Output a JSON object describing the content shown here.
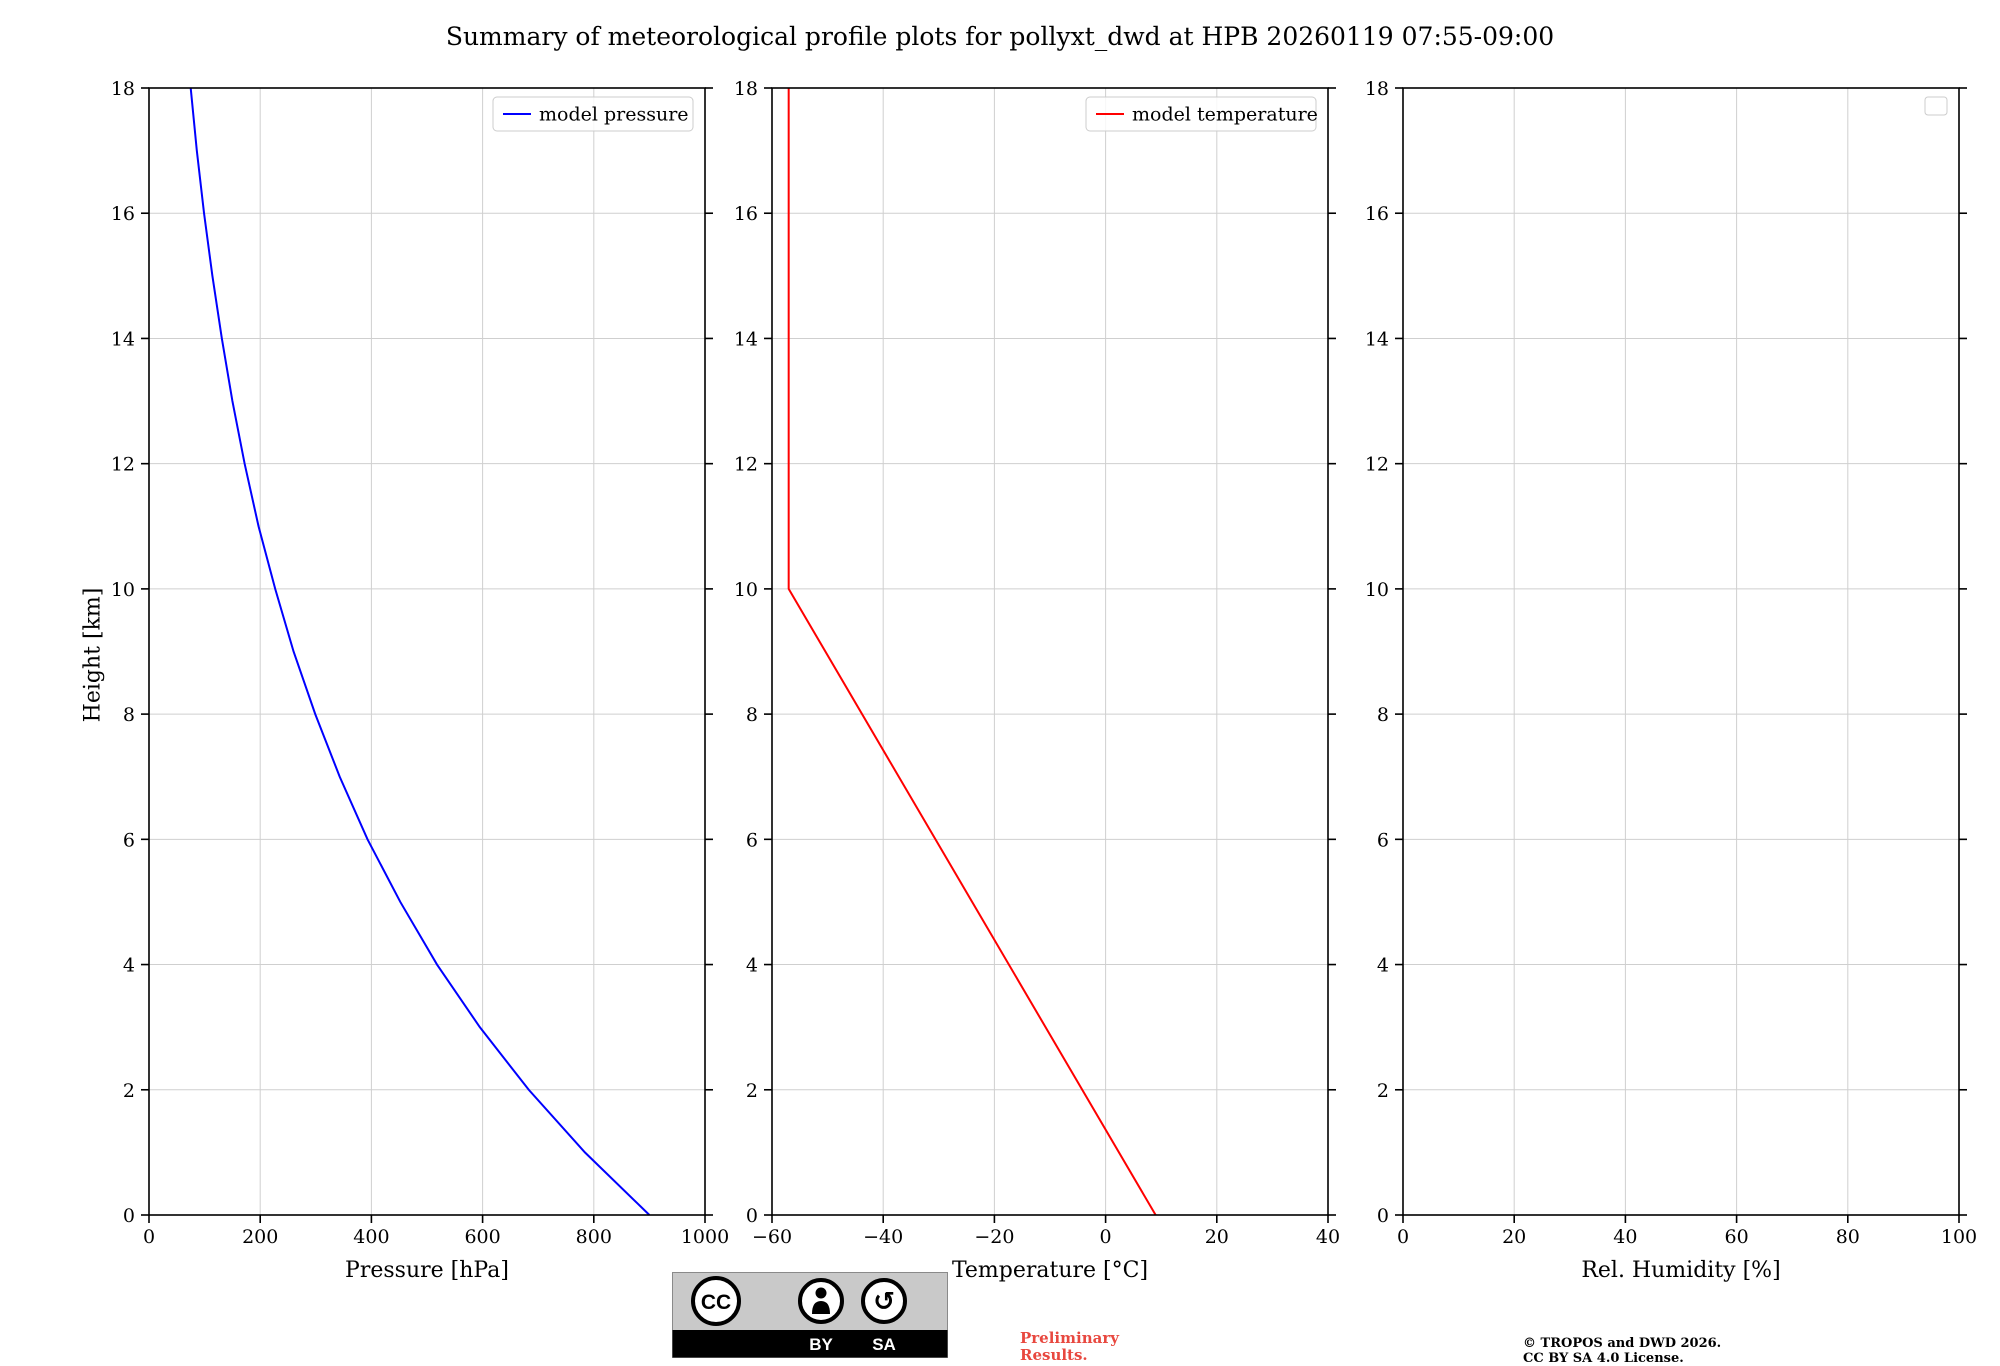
{
  "title": "Summary of meteorological profile plots for pollyxt_dwd at HPB 20260119 07:55-09:00",
  "footer": {
    "badge": {
      "cc": "CC",
      "by": "BY",
      "sa": "SA"
    },
    "preliminary": {
      "line1": "Preliminary",
      "line2": "Results.",
      "color": "#e8483f"
    },
    "copyright": {
      "line1": "© TROPOS and DWD 2026.",
      "line2": "CC BY SA 4.0 License."
    }
  },
  "chart_data": [
    {
      "id": "pressure",
      "type": "line",
      "xlabel": "Pressure [hPa]",
      "ylabel": "Height [km]",
      "xlim": [
        0,
        1000
      ],
      "ylim": [
        0,
        18
      ],
      "xticks": [
        0,
        200,
        400,
        600,
        800,
        1000
      ],
      "xtick_labels": [
        "0",
        "200",
        "400",
        "600",
        "800",
        "1000"
      ],
      "yticks": [
        0,
        2,
        4,
        6,
        8,
        10,
        12,
        14,
        16,
        18
      ],
      "grid": true,
      "legend": {
        "position": "top-right",
        "entries": [
          {
            "label": "model pressure",
            "color": "#0000ff"
          }
        ]
      },
      "series": [
        {
          "name": "model pressure",
          "color": "#0000ff",
          "x": [
            900,
            784,
            683,
            595,
            518,
            452,
            393,
            343,
            299,
            260,
            227,
            197,
            172,
            150,
            131,
            114,
            99,
            86,
            75
          ],
          "y": [
            0,
            1,
            2,
            3,
            4,
            5,
            6,
            7,
            8,
            9,
            10,
            11,
            12,
            13,
            14,
            15,
            16,
            17,
            18
          ]
        }
      ]
    },
    {
      "id": "temperature",
      "type": "line",
      "xlabel": "Temperature [°C]",
      "ylabel": "",
      "xlim": [
        -60,
        40
      ],
      "ylim": [
        0,
        18
      ],
      "xticks": [
        -60,
        -40,
        -20,
        0,
        20,
        40
      ],
      "xtick_labels": [
        "−60",
        "−40",
        "−20",
        "0",
        "20",
        "40"
      ],
      "yticks": [
        0,
        2,
        4,
        6,
        8,
        10,
        12,
        14,
        16,
        18
      ],
      "grid": true,
      "legend": {
        "position": "top-right",
        "entries": [
          {
            "label": "model temperature",
            "color": "#ff0000"
          }
        ]
      },
      "series": [
        {
          "name": "model temperature",
          "color": "#ff0000",
          "x": [
            9,
            -57,
            -57
          ],
          "y": [
            0,
            10,
            18
          ]
        }
      ]
    },
    {
      "id": "humidity",
      "type": "line",
      "xlabel": "Rel. Humidity [%]",
      "ylabel": "",
      "xlim": [
        0,
        100
      ],
      "ylim": [
        0,
        18
      ],
      "xticks": [
        0,
        20,
        40,
        60,
        80,
        100
      ],
      "xtick_labels": [
        "0",
        "20",
        "40",
        "60",
        "80",
        "100"
      ],
      "yticks": [
        0,
        2,
        4,
        6,
        8,
        10,
        12,
        14,
        16,
        18
      ],
      "grid": true,
      "legend": {
        "position": "top-right",
        "entries": []
      },
      "series": []
    }
  ]
}
